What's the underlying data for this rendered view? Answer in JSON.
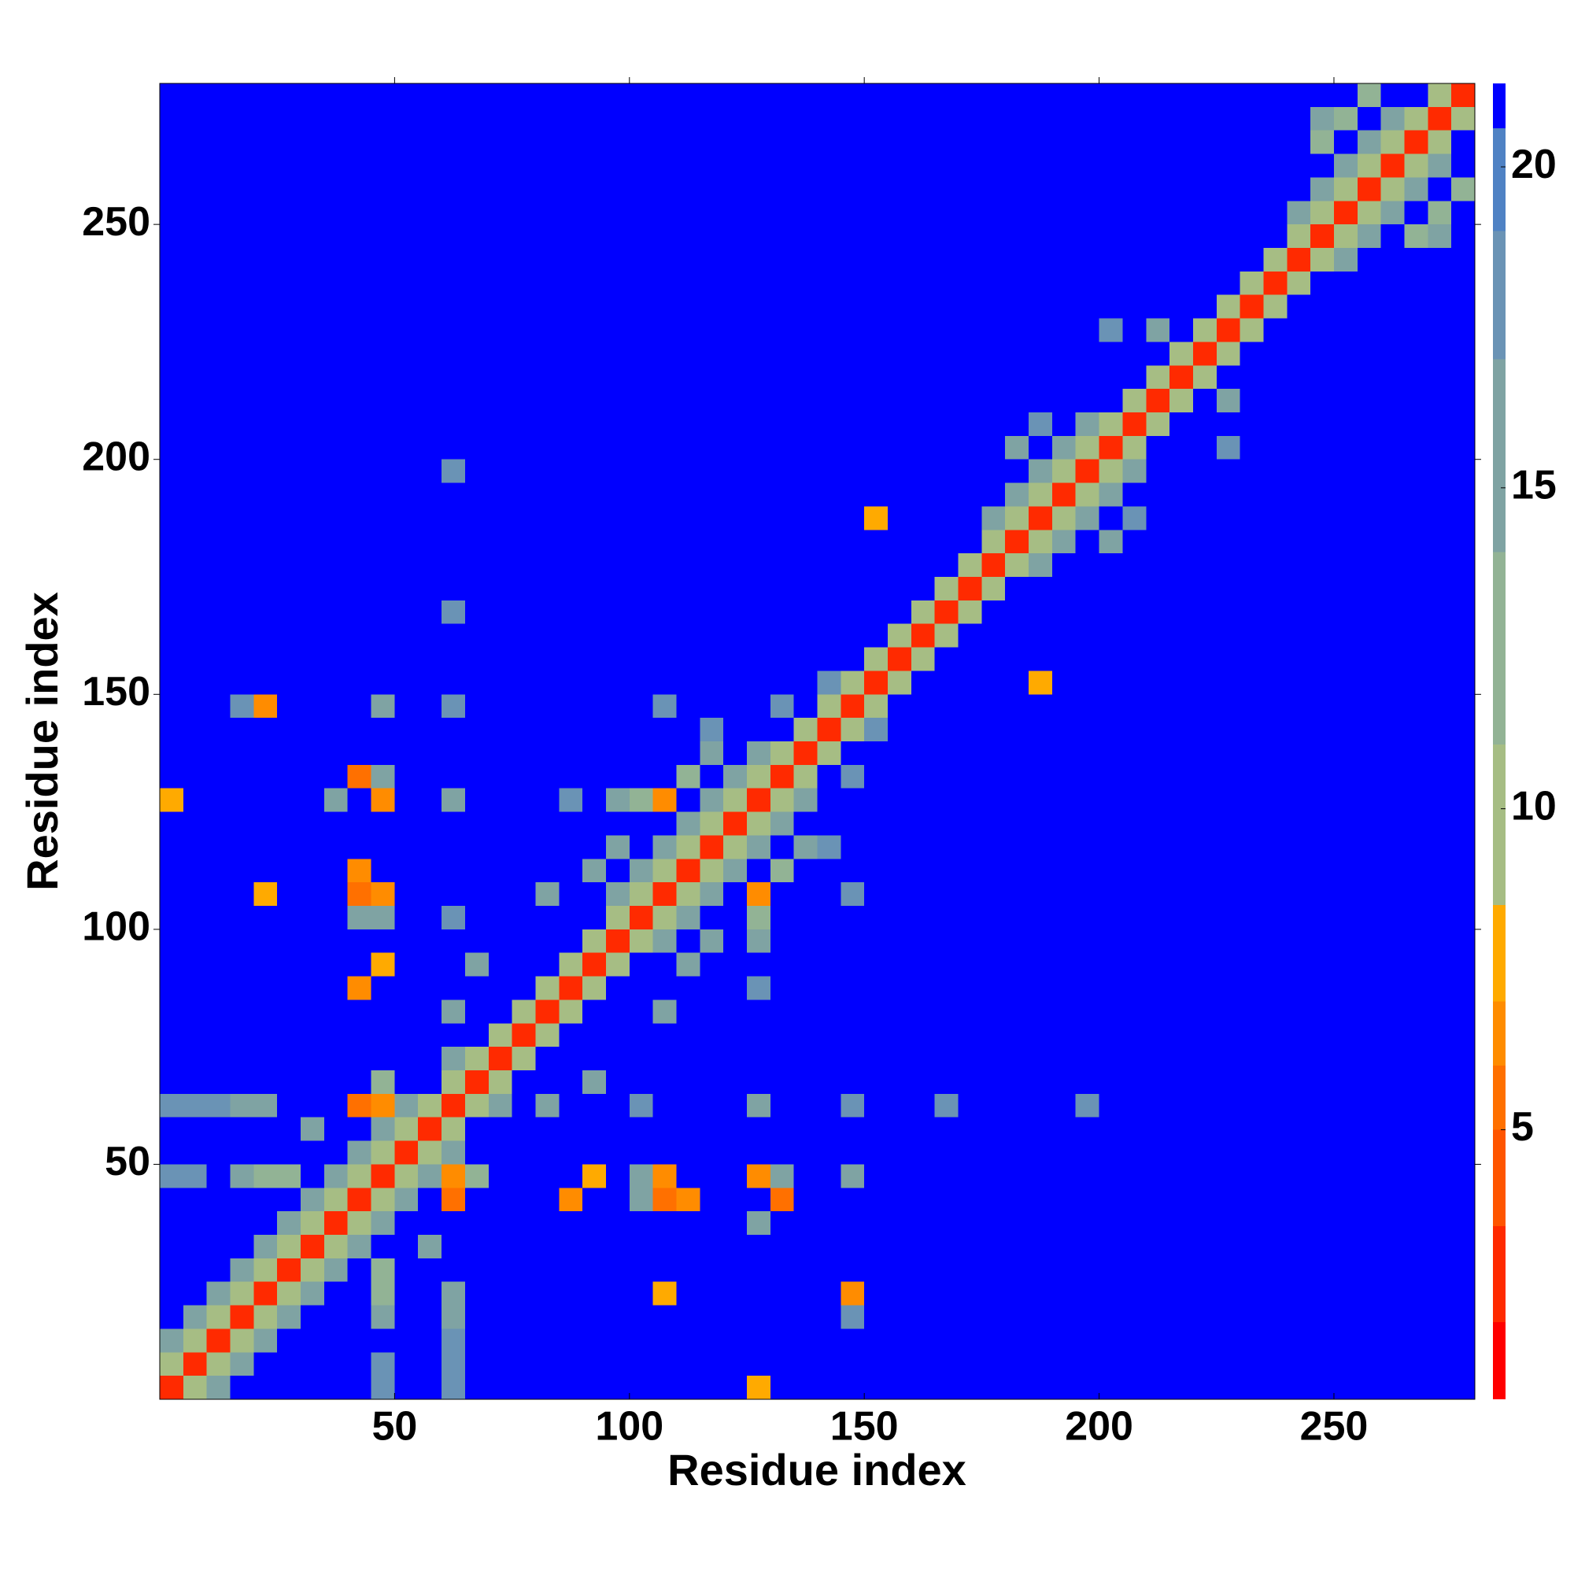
{
  "chart_data": {
    "type": "heatmap",
    "x_label": "Residue index",
    "y_label": "Residue index",
    "xlim": [
      0,
      280
    ],
    "ylim": [
      0,
      280
    ],
    "xticks": [
      50,
      100,
      150,
      200,
      250
    ],
    "yticks": [
      50,
      100,
      150,
      200,
      250
    ],
    "clim": [
      0.8,
      21.3
    ],
    "cticks": [
      5,
      10,
      15,
      20
    ],
    "colorscale": [
      {
        "value": 0.8,
        "color": "#ff0000"
      },
      {
        "value": 2,
        "color": "#ff2a00"
      },
      {
        "value": 3.5,
        "color": "#ff5500"
      },
      {
        "value": 5,
        "color": "#ff7000"
      },
      {
        "value": 6,
        "color": "#ff8c00"
      },
      {
        "value": 7,
        "color": "#ffaa00"
      },
      {
        "value": 8.5,
        "color": "#a6bd84"
      },
      {
        "value": 11,
        "color": "#92b395"
      },
      {
        "value": 14,
        "color": "#7fa3a3"
      },
      {
        "value": 17,
        "color": "#6a93b5"
      },
      {
        "value": 19,
        "color": "#4f82c4"
      },
      {
        "value": 20.6,
        "color": "#0000ff"
      }
    ],
    "background": 21,
    "bin": 5,
    "symmetric": true,
    "cells": [
      [
        0,
        0,
        2
      ],
      [
        5,
        5,
        2
      ],
      [
        10,
        10,
        2
      ],
      [
        15,
        15,
        2
      ],
      [
        20,
        20,
        2
      ],
      [
        25,
        25,
        2
      ],
      [
        30,
        30,
        2
      ],
      [
        35,
        35,
        2
      ],
      [
        40,
        40,
        2
      ],
      [
        45,
        45,
        2
      ],
      [
        50,
        50,
        2
      ],
      [
        55,
        55,
        2
      ],
      [
        60,
        60,
        2
      ],
      [
        65,
        65,
        2
      ],
      [
        70,
        70,
        2
      ],
      [
        75,
        75,
        2
      ],
      [
        80,
        80,
        2
      ],
      [
        85,
        85,
        2
      ],
      [
        90,
        90,
        2
      ],
      [
        95,
        95,
        2
      ],
      [
        100,
        100,
        2
      ],
      [
        105,
        105,
        2
      ],
      [
        110,
        110,
        2
      ],
      [
        115,
        115,
        2
      ],
      [
        120,
        120,
        2
      ],
      [
        125,
        125,
        2
      ],
      [
        130,
        130,
        2
      ],
      [
        135,
        135,
        2
      ],
      [
        140,
        140,
        2
      ],
      [
        145,
        145,
        2
      ],
      [
        150,
        150,
        2
      ],
      [
        155,
        155,
        2
      ],
      [
        160,
        160,
        2
      ],
      [
        165,
        165,
        2
      ],
      [
        170,
        170,
        2
      ],
      [
        175,
        175,
        2
      ],
      [
        180,
        180,
        2
      ],
      [
        185,
        185,
        2
      ],
      [
        190,
        190,
        2
      ],
      [
        195,
        195,
        2
      ],
      [
        200,
        200,
        2
      ],
      [
        205,
        205,
        2
      ],
      [
        210,
        210,
        2
      ],
      [
        215,
        215,
        2
      ],
      [
        220,
        220,
        2
      ],
      [
        225,
        225,
        2
      ],
      [
        230,
        230,
        2
      ],
      [
        235,
        235,
        2
      ],
      [
        240,
        240,
        2
      ],
      [
        245,
        245,
        2
      ],
      [
        250,
        250,
        2
      ],
      [
        255,
        255,
        2
      ],
      [
        260,
        260,
        2
      ],
      [
        265,
        265,
        2
      ],
      [
        270,
        270,
        2
      ],
      [
        275,
        275,
        2
      ],
      [
        0,
        5,
        9
      ],
      [
        5,
        10,
        9
      ],
      [
        10,
        15,
        9
      ],
      [
        15,
        20,
        9
      ],
      [
        20,
        25,
        9
      ],
      [
        25,
        30,
        9
      ],
      [
        30,
        35,
        9
      ],
      [
        35,
        40,
        9
      ],
      [
        40,
        45,
        9
      ],
      [
        45,
        50,
        9
      ],
      [
        50,
        55,
        9
      ],
      [
        55,
        60,
        9
      ],
      [
        60,
        65,
        9
      ],
      [
        65,
        70,
        9
      ],
      [
        70,
        75,
        9
      ],
      [
        75,
        80,
        9
      ],
      [
        80,
        85,
        9
      ],
      [
        85,
        90,
        9
      ],
      [
        90,
        95,
        9
      ],
      [
        95,
        100,
        9
      ],
      [
        100,
        105,
        9
      ],
      [
        105,
        110,
        9
      ],
      [
        110,
        115,
        9
      ],
      [
        115,
        120,
        9
      ],
      [
        120,
        125,
        9
      ],
      [
        125,
        130,
        9
      ],
      [
        130,
        135,
        9
      ],
      [
        135,
        140,
        9
      ],
      [
        140,
        145,
        9
      ],
      [
        145,
        150,
        9
      ],
      [
        150,
        155,
        9
      ],
      [
        155,
        160,
        9
      ],
      [
        160,
        165,
        9
      ],
      [
        165,
        170,
        9
      ],
      [
        170,
        175,
        9
      ],
      [
        175,
        180,
        9
      ],
      [
        180,
        185,
        9
      ],
      [
        185,
        190,
        9
      ],
      [
        190,
        195,
        9
      ],
      [
        195,
        200,
        9
      ],
      [
        200,
        205,
        9
      ],
      [
        205,
        210,
        9
      ],
      [
        210,
        215,
        9
      ],
      [
        215,
        220,
        9
      ],
      [
        220,
        225,
        9
      ],
      [
        225,
        230,
        9
      ],
      [
        230,
        235,
        9
      ],
      [
        235,
        240,
        9
      ],
      [
        240,
        245,
        9
      ],
      [
        245,
        250,
        9
      ],
      [
        250,
        255,
        9
      ],
      [
        255,
        260,
        9
      ],
      [
        260,
        265,
        9
      ],
      [
        265,
        270,
        9
      ],
      [
        270,
        275,
        9
      ],
      [
        0,
        10,
        15
      ],
      [
        5,
        15,
        15
      ],
      [
        10,
        20,
        15
      ],
      [
        15,
        25,
        15
      ],
      [
        20,
        30,
        15
      ],
      [
        25,
        35,
        15
      ],
      [
        30,
        40,
        15
      ],
      [
        35,
        45,
        15
      ],
      [
        40,
        50,
        15
      ],
      [
        45,
        55,
        15
      ],
      [
        50,
        60,
        15
      ],
      [
        95,
        105,
        15
      ],
      [
        100,
        110,
        15
      ],
      [
        105,
        115,
        15
      ],
      [
        110,
        120,
        15
      ],
      [
        115,
        125,
        15
      ],
      [
        120,
        130,
        15
      ],
      [
        125,
        135,
        15
      ],
      [
        175,
        185,
        15
      ],
      [
        180,
        190,
        15
      ],
      [
        185,
        195,
        15
      ],
      [
        190,
        200,
        15
      ],
      [
        195,
        205,
        15
      ],
      [
        240,
        250,
        15
      ],
      [
        245,
        255,
        15
      ],
      [
        250,
        260,
        15
      ],
      [
        255,
        265,
        15
      ],
      [
        260,
        270,
        15
      ],
      [
        40,
        130,
        5
      ],
      [
        45,
        125,
        6
      ],
      [
        40,
        105,
        5
      ],
      [
        45,
        105,
        6
      ],
      [
        40,
        110,
        6
      ],
      [
        40,
        85,
        6
      ],
      [
        45,
        90,
        7
      ],
      [
        40,
        60,
        5
      ],
      [
        45,
        60,
        6
      ],
      [
        20,
        145,
        6
      ],
      [
        0,
        125,
        7
      ],
      [
        20,
        105,
        8
      ],
      [
        105,
        125,
        6
      ],
      [
        150,
        185,
        7
      ],
      [
        40,
        100,
        14
      ],
      [
        45,
        100,
        15
      ],
      [
        35,
        125,
        16
      ],
      [
        45,
        130,
        15
      ],
      [
        60,
        125,
        16
      ],
      [
        60,
        100,
        17
      ],
      [
        60,
        80,
        15
      ],
      [
        60,
        70,
        14
      ],
      [
        20,
        45,
        12
      ],
      [
        25,
        45,
        13
      ],
      [
        30,
        55,
        14
      ],
      [
        20,
        60,
        16
      ],
      [
        45,
        65,
        13
      ],
      [
        65,
        90,
        16
      ],
      [
        100,
        125,
        13
      ],
      [
        95,
        125,
        16
      ],
      [
        110,
        130,
        12
      ],
      [
        115,
        135,
        15
      ],
      [
        85,
        125,
        17
      ],
      [
        90,
        110,
        15
      ],
      [
        95,
        115,
        14
      ],
      [
        80,
        105,
        14
      ],
      [
        115,
        140,
        17
      ],
      [
        130,
        145,
        17
      ],
      [
        140,
        150,
        17
      ],
      [
        180,
        200,
        16
      ],
      [
        185,
        205,
        17
      ],
      [
        200,
        225,
        17
      ],
      [
        210,
        225,
        16
      ],
      [
        245,
        270,
        14
      ],
      [
        250,
        270,
        13
      ],
      [
        255,
        275,
        13
      ],
      [
        245,
        265,
        12
      ],
      [
        15,
        145,
        17
      ],
      [
        60,
        145,
        18
      ],
      [
        45,
        145,
        16
      ],
      [
        105,
        145,
        17
      ],
      [
        60,
        165,
        18
      ],
      [
        60,
        195,
        18
      ],
      [
        0,
        60,
        18
      ],
      [
        5,
        60,
        18
      ],
      [
        10,
        60,
        17
      ],
      [
        0,
        45,
        18
      ],
      [
        5,
        45,
        17
      ],
      [
        15,
        60,
        15
      ],
      [
        15,
        45,
        14
      ]
    ]
  }
}
